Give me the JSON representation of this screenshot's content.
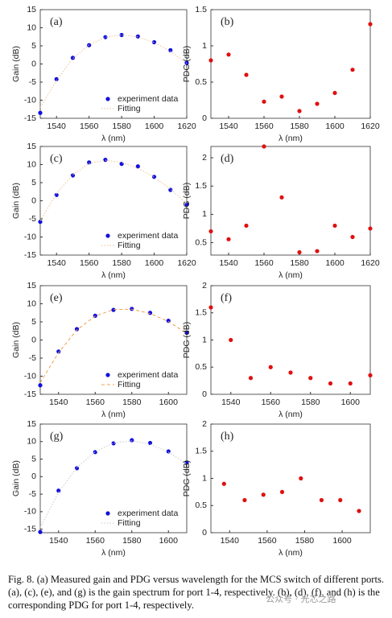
{
  "chart_data": [
    {
      "type": "scatter",
      "label": "(a)",
      "xlabel": "λ (nm)",
      "ylabel": "Gain (dB)",
      "xlim": [
        1530,
        1620
      ],
      "xticks": [
        1540,
        1560,
        1580,
        1600,
        1620
      ],
      "ylim": [
        -15,
        15
      ],
      "yticks": [
        -15,
        -10,
        -5,
        0,
        5,
        10,
        15
      ],
      "legend": "lower right",
      "x": [
        1530,
        1540,
        1550,
        1560,
        1570,
        1580,
        1590,
        1600,
        1610,
        1620
      ],
      "series": [
        {
          "name": "experiment data",
          "color": "#1010e0",
          "marker": "dot",
          "values": [
            -13.5,
            -4.2,
            1.7,
            5.2,
            7.4,
            8.0,
            7.6,
            6.0,
            3.8,
            0.3
          ]
        },
        {
          "name": "Fitting",
          "color": "#f0c090",
          "marker": "dotted",
          "values": [
            -12,
            -4.5,
            1.5,
            5.3,
            7.4,
            8.0,
            7.5,
            5.9,
            3.5,
            0.2
          ]
        }
      ]
    },
    {
      "type": "scatter",
      "label": "(b)",
      "xlabel": "λ (nm)",
      "ylabel": "PDG (dB)",
      "xlim": [
        1530,
        1620
      ],
      "xticks": [
        1540,
        1560,
        1580,
        1600,
        1620
      ],
      "ylim": [
        0,
        1.5
      ],
      "yticks": [
        0,
        0.5,
        1,
        1.5
      ],
      "x": [
        1530,
        1540,
        1550,
        1560,
        1570,
        1580,
        1590,
        1600,
        1610,
        1620
      ],
      "color": "#e01010",
      "values": [
        0.8,
        0.88,
        0.6,
        0.23,
        0.3,
        0.1,
        0.2,
        0.35,
        0.67,
        1.3
      ]
    },
    {
      "type": "scatter",
      "label": "(c)",
      "xlabel": "λ (nm)",
      "ylabel": "Gain (dB)",
      "xlim": [
        1530,
        1620
      ],
      "xticks": [
        1540,
        1560,
        1580,
        1600,
        1620
      ],
      "ylim": [
        -15,
        15
      ],
      "yticks": [
        -15,
        -10,
        -5,
        0,
        5,
        10,
        15
      ],
      "legend": "lower right",
      "x": [
        1530,
        1540,
        1550,
        1560,
        1570,
        1580,
        1590,
        1600,
        1610,
        1620
      ],
      "series": [
        {
          "name": "experiment data",
          "color": "#1010e0",
          "marker": "dot",
          "values": [
            -5.8,
            1.6,
            7.0,
            10.6,
            11.3,
            10.2,
            9.5,
            6.6,
            3.0,
            -1.0
          ]
        },
        {
          "name": "Fitting",
          "color": "#f0c090",
          "marker": "dotted",
          "values": [
            -5.5,
            2.0,
            7.2,
            10.3,
            11.2,
            10.6,
            9.0,
            6.5,
            3.2,
            -0.8
          ]
        }
      ]
    },
    {
      "type": "scatter",
      "label": "(d)",
      "xlabel": "λ (nm)",
      "ylabel": "PDG (dB)",
      "xlim": [
        1530,
        1620
      ],
      "xticks": [
        1540,
        1560,
        1580,
        1600,
        1620
      ],
      "ylim": [
        0.28,
        2.2
      ],
      "yticks": [
        0.5,
        1,
        1.5,
        2
      ],
      "x": [
        1530,
        1540,
        1550,
        1560,
        1570,
        1580,
        1590,
        1600,
        1610,
        1620
      ],
      "color": "#e01010",
      "values": [
        0.7,
        0.56,
        0.8,
        2.2,
        1.3,
        0.33,
        0.35,
        0.8,
        0.6,
        0.75
      ]
    },
    {
      "type": "scatter",
      "label": "(e)",
      "xlabel": "λ (nm)",
      "ylabel": "Gain (dB)",
      "xlim": [
        1530,
        1610
      ],
      "xticks": [
        1540,
        1560,
        1580,
        1600
      ],
      "ylim": [
        -15,
        15
      ],
      "yticks": [
        -15,
        -10,
        -5,
        0,
        5,
        10,
        15
      ],
      "legend": "lower right",
      "x": [
        1530,
        1540,
        1550,
        1560,
        1570,
        1580,
        1590,
        1600,
        1610
      ],
      "series": [
        {
          "name": "experiment data",
          "color": "#1010e0",
          "marker": "dot",
          "values": [
            -12.5,
            -3.2,
            3.0,
            6.7,
            8.3,
            8.6,
            7.5,
            5.3,
            2.0
          ]
        },
        {
          "name": "Fitting",
          "color": "#f0a050",
          "marker": "dashed",
          "values": [
            -11.8,
            -3.5,
            2.8,
            6.6,
            8.4,
            8.5,
            7.3,
            5.1,
            1.8
          ]
        }
      ]
    },
    {
      "type": "scatter",
      "label": "(f)",
      "xlabel": "λ (nm)",
      "ylabel": "PDG (dB)",
      "xlim": [
        1530,
        1610
      ],
      "xticks": [
        1540,
        1560,
        1580,
        1600
      ],
      "ylim": [
        0,
        2
      ],
      "yticks": [
        0,
        0.5,
        1,
        1.5,
        2
      ],
      "x": [
        1530,
        1540,
        1550,
        1560,
        1570,
        1580,
        1590,
        1600,
        1610
      ],
      "color": "#e01010",
      "values": [
        1.6,
        1.0,
        0.3,
        0.5,
        0.4,
        0.3,
        0.2,
        0.2,
        0.35
      ]
    },
    {
      "type": "scatter",
      "label": "(g)",
      "xlabel": "λ (nm)",
      "ylabel": "Gain (dB)",
      "xlim": [
        1530,
        1610
      ],
      "xticks": [
        1540,
        1560,
        1580,
        1600
      ],
      "ylim": [
        -16,
        15
      ],
      "yticks": [
        -15,
        -10,
        -5,
        0,
        5,
        10,
        15
      ],
      "legend": "lower right",
      "x": [
        1530,
        1540,
        1550,
        1560,
        1570,
        1580,
        1590,
        1600,
        1610
      ],
      "series": [
        {
          "name": "experiment data",
          "color": "#1010e0",
          "marker": "dot",
          "values": [
            -15.8,
            -4.0,
            2.4,
            7.0,
            9.5,
            10.4,
            9.6,
            7.2,
            4.0
          ]
        },
        {
          "name": "Fitting",
          "color": "#c8c8c8",
          "marker": "dotted",
          "values": [
            -14.5,
            -4.5,
            2.6,
            7.1,
            9.6,
            10.2,
            9.3,
            7.0,
            3.6
          ]
        }
      ]
    },
    {
      "type": "scatter",
      "label": "(h)",
      "xlabel": "λ (nm)",
      "ylabel": "PDG (dB)",
      "xlim": [
        1530,
        1615
      ],
      "xticks": [
        1540,
        1560,
        1580,
        1600
      ],
      "ylim": [
        0,
        2
      ],
      "yticks": [
        0,
        0.5,
        1,
        1.5,
        2
      ],
      "x": [
        1537,
        1548,
        1558,
        1568,
        1578,
        1589,
        1599,
        1609
      ],
      "color": "#e01010",
      "values": [
        0.9,
        0.6,
        0.7,
        0.75,
        1.0,
        0.6,
        0.6,
        0.4
      ]
    }
  ],
  "caption": "Fig. 8.    (a) Measured gain and PDG versus wavelength for the MCS switch of different ports. (a), (c), (e), and (g) is the gain spectrum for port 1-4, respectively. (b), (d), (f), and (h) is the corresponding PDG for port 1-4, respectively.",
  "watermark": "公众号 · 光芯之路"
}
